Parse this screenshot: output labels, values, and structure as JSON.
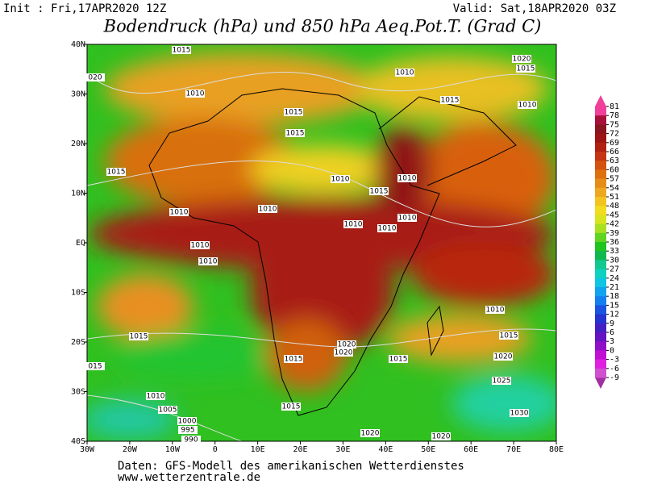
{
  "header": {
    "init": "Init : Fri,17APR2020 12Z",
    "valid": "Valid: Sat,18APR2020 03Z",
    "title": "Bodendruck (hPa) und 850 hPa Aeq.Pot.T. (Grad C)"
  },
  "map": {
    "lat_labels": [
      "40N",
      "30N",
      "20N",
      "10N",
      "EQ",
      "10S",
      "20S",
      "30S",
      "40S"
    ],
    "lon_labels": [
      "30W",
      "20W",
      "10W",
      "0",
      "10E",
      "20E",
      "30E",
      "40E",
      "50E",
      "60E",
      "70E",
      "80E"
    ],
    "isobar_labels": [
      "1015",
      "1020",
      "1015",
      "1010",
      "020",
      "1010",
      "1015",
      "1010",
      "1015",
      "1015",
      "1015",
      "1010",
      "1010",
      "1015",
      "1010",
      "1010",
      "1010",
      "1010",
      "1010",
      "1010",
      "1010",
      "1010",
      "1015",
      "1015",
      "1020",
      "1020",
      "1020",
      "1015",
      "1015",
      "015",
      "1025",
      "1010",
      "1005",
      "1015",
      "1030",
      "1000",
      "995",
      "990",
      "1020",
      "1020"
    ]
  },
  "colorbar": {
    "ticks": [
      81,
      78,
      75,
      72,
      69,
      66,
      63,
      60,
      57,
      54,
      51,
      48,
      45,
      42,
      39,
      36,
      33,
      30,
      27,
      24,
      21,
      18,
      15,
      12,
      9,
      6,
      3,
      0,
      -3,
      -6,
      -9
    ],
    "colors": [
      "#f0409a",
      "#a8103c",
      "#8a1420",
      "#9c1414",
      "#b02010",
      "#c43414",
      "#d45210",
      "#de7010",
      "#e68c18",
      "#eea820",
      "#f2c420",
      "#f2dc20",
      "#d8e420",
      "#a8e020",
      "#60d420",
      "#20c420",
      "#10b850",
      "#10c890",
      "#10d0c0",
      "#10c4e4",
      "#10a4f0",
      "#1480f0",
      "#1a54e0",
      "#2434d0",
      "#4420c4",
      "#6414c0",
      "#9010c8",
      "#c010d4",
      "#e020e0",
      "#d050d0",
      "#a030a0"
    ]
  },
  "footer": [
    "Daten: GFS-Modell des amerikanischen Wetterdienstes",
    "www.wetterzentrale.de"
  ]
}
